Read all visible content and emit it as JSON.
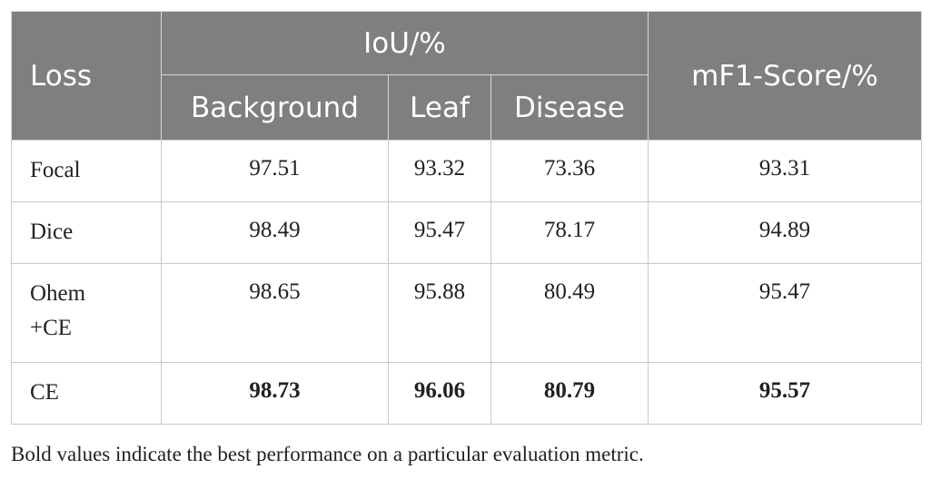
{
  "table": {
    "header": {
      "loss": "Loss",
      "iou_group": "IoU/%",
      "mf1": "mF1-Score/%",
      "background": "Background",
      "leaf": "Leaf",
      "disease": "Disease"
    },
    "rows": [
      {
        "loss": "Focal",
        "background": "97.51",
        "leaf": "93.32",
        "disease": "73.36",
        "mf1": "93.31"
      },
      {
        "loss": "Dice",
        "background": "98.49",
        "leaf": "95.47",
        "disease": "78.17",
        "mf1": "94.89"
      },
      {
        "loss_line1": "Ohem",
        "loss_line2": "+CE",
        "background": "98.65",
        "leaf": "95.88",
        "disease": "80.49",
        "mf1": "95.47"
      },
      {
        "loss": "CE",
        "background": "98.73",
        "leaf": "96.06",
        "disease": "80.79",
        "mf1": "95.57",
        "bold": true
      }
    ]
  },
  "footnote": "Bold values indicate the best performance on a particular evaluation metric."
}
